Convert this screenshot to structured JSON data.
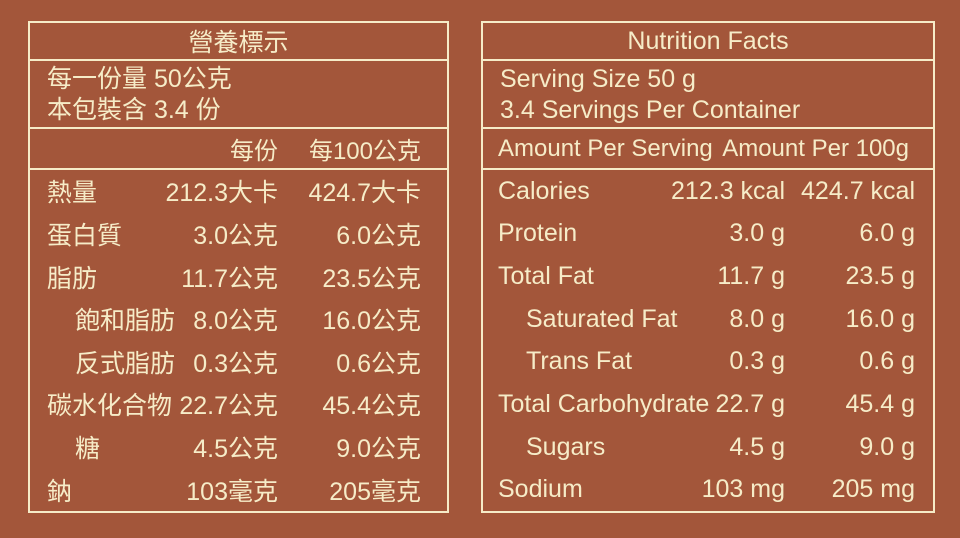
{
  "colors": {
    "background": "#A3563A",
    "foreground": "#F6ECC8"
  },
  "left_panel": {
    "title": "營養標示",
    "serving_size_line": "每一份量 50公克",
    "servings_per_container_line": "本包裝含 3.4 份",
    "column_headers": {
      "per_serving": "每份",
      "per_100g": "每100公克"
    },
    "rows": [
      {
        "label": "熱量",
        "per_serving": "212.3大卡",
        "per_100g": "424.7大卡"
      },
      {
        "label": "蛋白質",
        "per_serving": "3.0公克",
        "per_100g": "6.0公克"
      },
      {
        "label": "脂肪",
        "per_serving": "11.7公克",
        "per_100g": "23.5公克"
      },
      {
        "label": "飽和脂肪",
        "per_serving": "8.0公克",
        "per_100g": "16.0公克"
      },
      {
        "label": "反式脂肪",
        "per_serving": "0.3公克",
        "per_100g": "0.6公克"
      },
      {
        "label": "碳水化合物",
        "per_serving": "22.7公克",
        "per_100g": "45.4公克"
      },
      {
        "label": "糖",
        "per_serving": "4.5公克",
        "per_100g": "9.0公克"
      },
      {
        "label": "鈉",
        "per_serving": "103毫克",
        "per_100g": "205毫克"
      }
    ]
  },
  "right_panel": {
    "title": "Nutrition Facts",
    "serving_size_line": "Serving Size 50 g",
    "servings_per_container_line": "3.4 Servings Per Container",
    "column_headers": {
      "per_serving": "Amount Per Serving",
      "per_100g": "Amount Per 100g"
    },
    "rows": [
      {
        "label": "Calories",
        "per_serving": "212.3 kcal",
        "per_100g": "424.7 kcal"
      },
      {
        "label": "Protein",
        "per_serving": "3.0 g",
        "per_100g": "6.0 g"
      },
      {
        "label": "Total Fat",
        "per_serving": "11.7 g",
        "per_100g": "23.5 g"
      },
      {
        "label": "Saturated Fat",
        "per_serving": "8.0 g",
        "per_100g": "16.0 g"
      },
      {
        "label": "Trans Fat",
        "per_serving": "0.3 g",
        "per_100g": "0.6 g"
      },
      {
        "label": "Total Carbohydrate",
        "per_serving": "22.7 g",
        "per_100g": "45.4 g"
      },
      {
        "label": "Sugars",
        "per_serving": "4.5 g",
        "per_100g": "9.0 g"
      },
      {
        "label": "Sodium",
        "per_serving": "103 mg",
        "per_100g": "205 mg"
      }
    ]
  }
}
